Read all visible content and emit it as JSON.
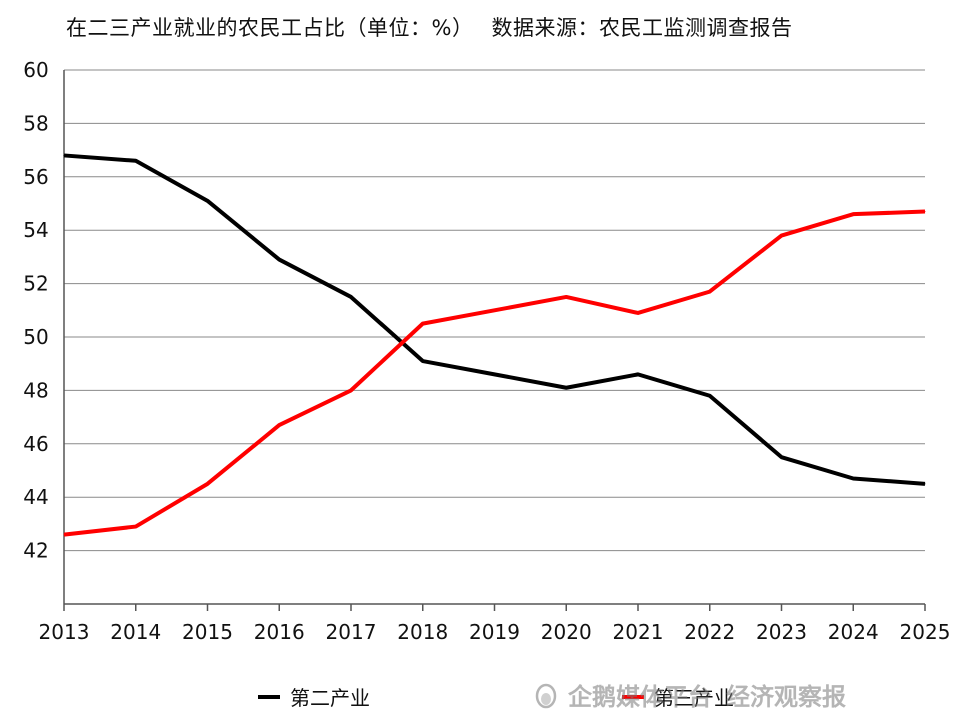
{
  "header": {
    "title": "在二三产业就业的农民工占比（单位：%）",
    "source": "数据来源：农民工监测调查报告"
  },
  "watermark": {
    "platform": "企鹅媒体平台",
    "account": "经济观察报",
    "icon": "penguin-icon"
  },
  "chart_data": {
    "type": "line",
    "title": "在二三产业就业的农民工占比（单位：%）",
    "xlabel": "",
    "ylabel": "",
    "x": [
      "2013",
      "2014",
      "2015",
      "2016",
      "2017",
      "2018",
      "2019",
      "2020",
      "2021",
      "2022",
      "2023",
      "2024",
      "2025"
    ],
    "ylim": [
      40,
      60
    ],
    "yticks": [
      60,
      58,
      56,
      54,
      52,
      50,
      48,
      46,
      44,
      42
    ],
    "grid": true,
    "legend_position": "bottom",
    "series": [
      {
        "name": "第二产业",
        "color": "#000000",
        "values": [
          56.8,
          56.6,
          55.1,
          52.9,
          51.5,
          49.1,
          48.6,
          48.1,
          48.6,
          47.8,
          45.5,
          44.7,
          44.5
        ]
      },
      {
        "name": "第三产业",
        "color": "#ff0000",
        "values": [
          42.6,
          42.9,
          44.5,
          46.7,
          48.0,
          50.5,
          51.0,
          51.5,
          50.9,
          51.7,
          53.8,
          54.6,
          54.7
        ]
      }
    ]
  }
}
